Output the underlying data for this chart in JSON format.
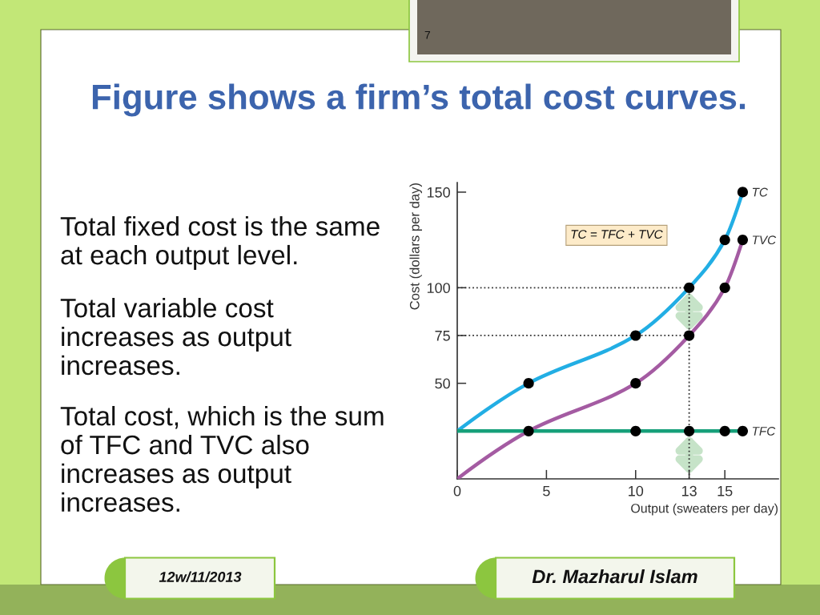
{
  "chart_data": {
    "type": "line",
    "title": "Figure shows a firm’s total cost curves.",
    "xlabel": "Output (sweaters per day)",
    "ylabel": "Cost (dollars per day)",
    "series": [
      {
        "name": "TC",
        "color": "#22aee4",
        "x": [
          0,
          4,
          10,
          13,
          15,
          16
        ],
        "values": [
          25,
          50,
          75,
          100,
          125,
          150
        ]
      },
      {
        "name": "TVC",
        "color": "#a45ba2",
        "x": [
          0,
          4,
          10,
          13,
          15,
          16
        ],
        "values": [
          0,
          25,
          50,
          75,
          100,
          125
        ]
      },
      {
        "name": "TFC",
        "color": "#16a07a",
        "x": [
          0,
          4,
          10,
          13,
          15,
          16
        ],
        "values": [
          25,
          25,
          25,
          25,
          25,
          25
        ]
      },
      {
        "type": "scatter",
        "color": "#000000",
        "marker": "circle",
        "x": [
          4,
          10,
          13,
          15,
          16,
          10,
          13,
          15,
          16,
          4,
          10,
          13,
          15,
          16
        ],
        "values": [
          50,
          75,
          100,
          125,
          150,
          50,
          75,
          100,
          125,
          25,
          25,
          25,
          25,
          25
        ]
      }
    ],
    "xlim": [
      0,
      18
    ],
    "ylim": [
      0,
      155
    ],
    "xticks": [
      0,
      5,
      10,
      13,
      15
    ],
    "yticks": [
      50,
      75,
      100,
      150
    ],
    "ref_lines": [
      {
        "axis": "y",
        "value": 100,
        "color": "#333333",
        "line_style": "dotted"
      },
      {
        "axis": "y",
        "value": 75,
        "color": "#333333",
        "line_style": "dotted"
      },
      {
        "axis": "x",
        "value": 13,
        "color": "#333333",
        "line_style": "dotted"
      }
    ],
    "annotations": [
      "TC = TFC + TVC",
      "Total fixed cost is the same\nat each output level.",
      "Total variable cost\nincreases as output\nincreases.",
      "Total cost, which is the sum\nof TFC and TVC also\nincreases as output\nincreases.",
      "7",
      "12w/11/2013",
      "Dr. Mazharul Islam"
    ],
    "legend": false,
    "grid": false,
    "line_style": "solid"
  }
}
